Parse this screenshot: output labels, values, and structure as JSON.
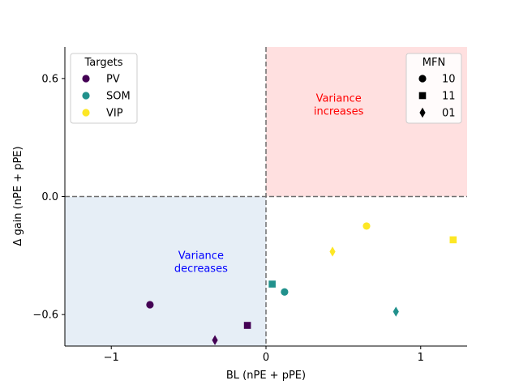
{
  "chart_data": {
    "type": "scatter",
    "xlabel": "BL (nPE + pPE)",
    "ylabel": "Δ gain (nPE + pPE)",
    "xlim": [
      -1.3,
      1.3
    ],
    "ylim": [
      -0.76,
      0.76
    ],
    "xticks": [
      {
        "value": -1,
        "label": "−1"
      },
      {
        "value": 0,
        "label": "0"
      },
      {
        "value": 1,
        "label": "1"
      }
    ],
    "yticks": [
      {
        "value": 0.6,
        "label": "0.6"
      },
      {
        "value": 0,
        "label": "0.0"
      },
      {
        "value": -0.6,
        "label": "−0.6"
      }
    ],
    "grid": false,
    "regions": [
      {
        "quadrant": "top-right",
        "color": "#ffe0e0",
        "label_lines": [
          "Variance",
          "increases"
        ],
        "label_color": "#ff0000",
        "label_at": [
          0.47,
          0.45
        ]
      },
      {
        "quadrant": "bottom-left",
        "color": "#e6eef6",
        "label_lines": [
          "Variance",
          "decreases"
        ],
        "label_color": "#0000ff",
        "label_at": [
          -0.42,
          -0.35
        ]
      }
    ],
    "reference_lines": [
      {
        "axis": "x",
        "value": 0
      },
      {
        "axis": "y",
        "value": 0
      }
    ],
    "targets_legend": {
      "title": "Targets",
      "placement": "top-left",
      "items": [
        {
          "label": "PV",
          "color": "#440154"
        },
        {
          "label": "SOM",
          "color": "#21918c"
        },
        {
          "label": "VIP",
          "color": "#fde725"
        }
      ]
    },
    "mfn_legend": {
      "title": "MFN",
      "placement": "top-right",
      "items": [
        {
          "label": "10",
          "marker": "circle"
        },
        {
          "label": "11",
          "marker": "square"
        },
        {
          "label": "01",
          "marker": "diamond"
        }
      ]
    },
    "points": [
      {
        "target": "PV",
        "mfn": "10",
        "x": -0.75,
        "y": -0.55
      },
      {
        "target": "PV",
        "mfn": "11",
        "x": -0.12,
        "y": -0.655
      },
      {
        "target": "PV",
        "mfn": "01",
        "x": -0.33,
        "y": -0.73
      },
      {
        "target": "SOM",
        "mfn": "10",
        "x": 0.12,
        "y": -0.485
      },
      {
        "target": "SOM",
        "mfn": "11",
        "x": 0.04,
        "y": -0.445
      },
      {
        "target": "SOM",
        "mfn": "01",
        "x": 0.84,
        "y": -0.585
      },
      {
        "target": "VIP",
        "mfn": "10",
        "x": 0.65,
        "y": -0.15
      },
      {
        "target": "VIP",
        "mfn": "11",
        "x": 1.21,
        "y": -0.22
      },
      {
        "target": "VIP",
        "mfn": "01",
        "x": 0.43,
        "y": -0.28
      }
    ]
  }
}
